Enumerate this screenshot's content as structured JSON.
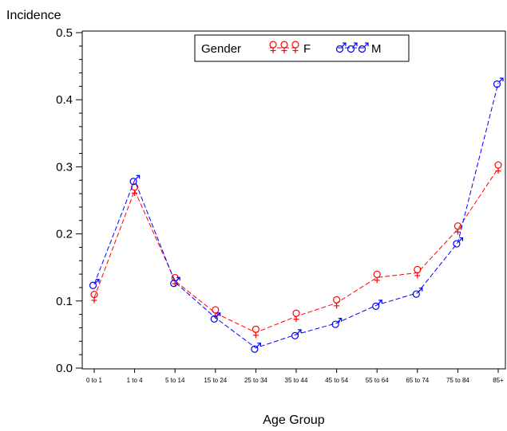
{
  "chart_data": {
    "type": "line",
    "title": "",
    "xlabel": "Age Group",
    "ylabel": "Incidence",
    "categories": [
      "0 to 1",
      "1 to 4",
      "5 to 14",
      "15 to 24",
      "25 to 34",
      "35 to 44",
      "45 to 54",
      "55 to 64",
      "65 to 74",
      "75 to 84",
      "85+"
    ],
    "ylim": [
      0,
      0.5
    ],
    "yticks": [
      "0.0",
      "0.1",
      "0.2",
      "0.3",
      "0.4",
      "0.5"
    ],
    "grid": false,
    "legend": {
      "title": "Gender",
      "placement": "top-center"
    },
    "series": [
      {
        "name": "F",
        "color": "#ff0000",
        "symbol": "♀",
        "values": [
          0.105,
          0.265,
          0.13,
          0.082,
          0.053,
          0.077,
          0.097,
          0.135,
          0.142,
          0.207,
          0.298
        ]
      },
      {
        "name": "M",
        "color": "#0000ff",
        "symbol": "♂",
        "values": [
          0.125,
          0.28,
          0.128,
          0.075,
          0.03,
          0.05,
          0.067,
          0.094,
          0.112,
          0.187,
          0.425
        ]
      }
    ]
  }
}
